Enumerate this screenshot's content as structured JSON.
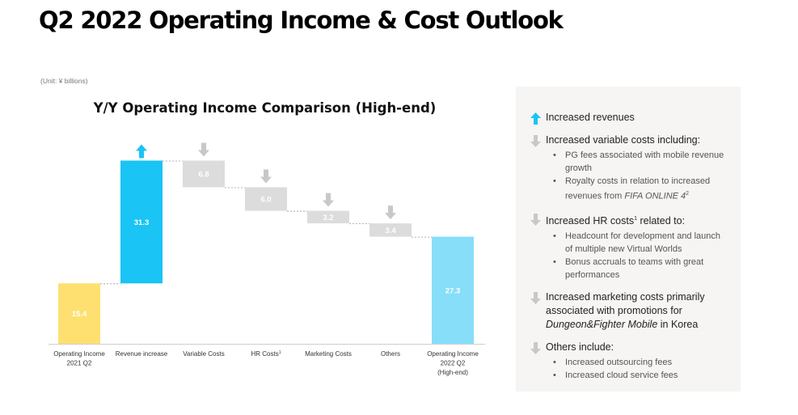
{
  "page": {
    "title": "Q2 2022 Operating Income & Cost Outlook",
    "unit_note": "(Unit: ¥ billions)"
  },
  "chart_data": {
    "type": "bar",
    "title": "Y/Y Operating Income Comparison (High-end)",
    "categories": [
      "Operating Income\n2021 Q2",
      "Revenue increase",
      "Variable Costs",
      "HR Costs",
      "Marketing Costs",
      "Others",
      "Operating Income\n2022 Q2\n(High-end)"
    ],
    "category_superscripts": [
      "",
      "",
      "",
      "1",
      "",
      "",
      ""
    ],
    "values": [
      15.4,
      31.3,
      -6.8,
      -6.0,
      -3.2,
      -3.4,
      27.3
    ],
    "value_labels": [
      "15.4",
      "31.3",
      "6.8",
      "6.0",
      "3.2",
      "3.4",
      "27.3"
    ],
    "kinds": [
      "total",
      "increase",
      "decrease",
      "decrease",
      "decrease",
      "decrease",
      "total"
    ],
    "colors": {
      "start_total": "#fde06f",
      "increase": "#1ac4f4",
      "decrease": "#dcdcdc",
      "end_total": "#86def9",
      "up_arrow": "#1ac4f4",
      "down_arrow": "#c8c8c8"
    },
    "ylim": [
      0,
      50
    ],
    "grid": false,
    "legend": "none"
  },
  "panel": {
    "sections": [
      {
        "icon": "up-arrow-icon",
        "heading": "Increased revenues",
        "bullets": []
      },
      {
        "icon": "down-arrow-icon",
        "heading": "Increased variable costs including:",
        "bullets": [
          {
            "text": "PG fees associated with mobile revenue growth"
          },
          {
            "text": "Royalty costs in relation to increased revenues from ",
            "italic": "FIFA ONLINE 4",
            "sup": "2"
          }
        ]
      },
      {
        "icon": "down-arrow-icon",
        "heading": "Increased HR costs",
        "heading_sup": "1",
        "heading_after": " related to:",
        "bullets": [
          {
            "text": "Headcount for development and launch of multiple new Virtual Worlds"
          },
          {
            "text": "Bonus accruals to teams with great performances"
          }
        ]
      },
      {
        "icon": "down-arrow-icon",
        "heading": "Increased marketing costs primarily associated with promotions for ",
        "heading_italic": "Dungeon&Fighter Mobile",
        "heading_after": " in Korea",
        "bullets": []
      },
      {
        "icon": "down-arrow-icon",
        "heading": "Others include:",
        "bullets": [
          {
            "text": "Increased outsourcing fees"
          },
          {
            "text": "Increased cloud service fees"
          }
        ]
      }
    ]
  }
}
